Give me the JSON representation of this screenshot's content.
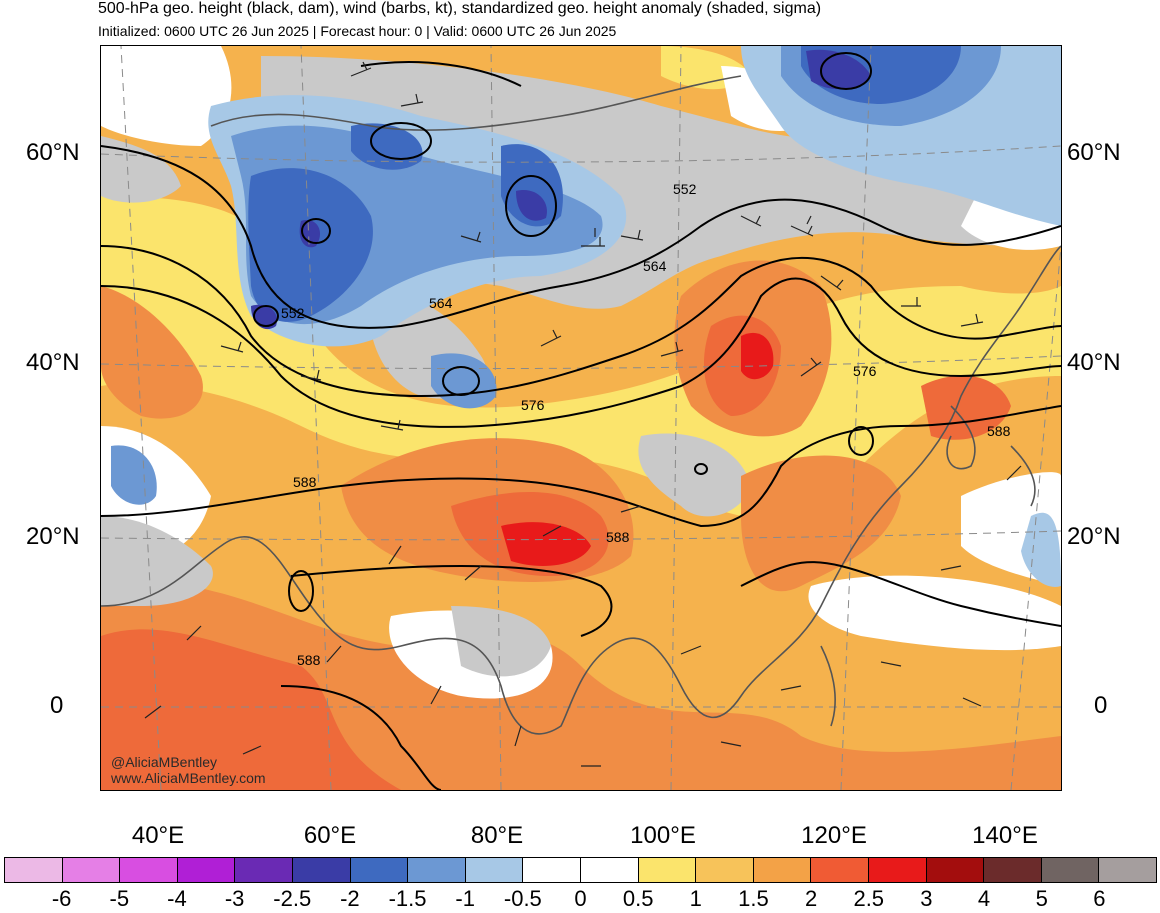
{
  "header": {
    "title": "500-hPa geo. height (black, dam), wind (barbs, kt), standardized geo. height anomaly (shaded, sigma)",
    "subtitle": "Initialized: 0600 UTC 26 Jun 2025 | Forecast hour: 0 | Valid: 0600 UTC 26 Jun 2025"
  },
  "map": {
    "lat_labels": [
      "60°N",
      "40°N",
      "20°N",
      "0"
    ],
    "lon_labels": [
      "40°E",
      "60°E",
      "80°E",
      "100°E",
      "120°E",
      "140°E"
    ],
    "contour_labels": [
      "552",
      "552",
      "564",
      "564",
      "576",
      "576",
      "588",
      "588",
      "588",
      "588"
    ],
    "credit": {
      "line1": "@AliciaMBentley",
      "line2": "www.AliciaMBentley.com"
    }
  },
  "colorbar": {
    "colors": [
      "#ecb9e6",
      "#e57fe6",
      "#d84ee1",
      "#b01fd6",
      "#6a2ab4",
      "#3a3ca6",
      "#3e6ac0",
      "#6c98d3",
      "#a7c8e6",
      "#ffffff",
      "#ffffff",
      "#fbe46c",
      "#f7c35a",
      "#f3a247",
      "#f05b34",
      "#e81a1a",
      "#a30d0d",
      "#6b2b2b",
      "#706462",
      "#a59e9e"
    ],
    "tick_labels": [
      "-6",
      "-5",
      "-4",
      "-3",
      "-2.5",
      "-2",
      "-1.5",
      "-1",
      "-0.5",
      "0",
      "0.5",
      "1",
      "1.5",
      "2",
      "2.5",
      "3",
      "4",
      "5",
      "6"
    ]
  }
}
